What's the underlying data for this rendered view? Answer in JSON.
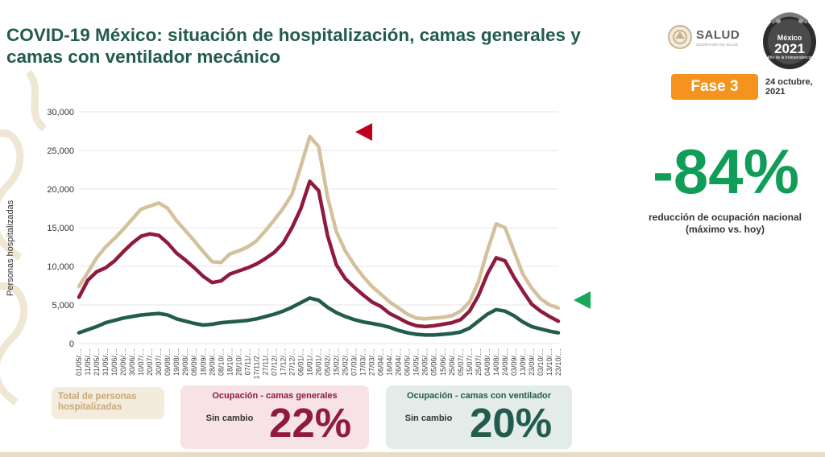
{
  "title": "COVID-19 México: situación de hospitalización, camas generales y camas con ventilador mecánico",
  "logo": {
    "name": "SALUD",
    "subtitle": "SECRETARÍA DE SALUD"
  },
  "seal": {
    "line1": "México",
    "line2": "2021",
    "line3": "Año de la Independencia"
  },
  "phase_badge": "Fase 3",
  "date": "24 octubre, 2021",
  "headline": {
    "value": "-84%",
    "label": "reducción de ocupación nacional (máximo vs. hoy)"
  },
  "legend": {
    "total": "Total de personas hospitalizadas",
    "general": {
      "title": "Ocupación - camas generales",
      "status": "Sin cambio",
      "pct": "22%"
    },
    "ventilator": {
      "title": "Ocupación - camas con ventilador",
      "status": "Sin cambio",
      "pct": "20%"
    }
  },
  "colors": {
    "title": "#235b4e",
    "total": "#d4c19c",
    "general": "#8f1a3c",
    "ventilator": "#235b4e",
    "badge": "#f5931e",
    "headline": "#0f9d58",
    "marker_red": "#c0001a",
    "marker_green": "#18a85a"
  },
  "chart_data": {
    "type": "line",
    "ylabel": "Personas hospitalizadas",
    "ylim": [
      0,
      30000
    ],
    "yticks": [
      "0",
      "5,000",
      "10,000",
      "15,000",
      "20,000",
      "25,000",
      "30,000"
    ],
    "x_tick_labels": [
      "01/05/…",
      "11/05/…",
      "21/05/…",
      "31/05/…",
      "10/06/…",
      "20/06/…",
      "30/06/…",
      "10/07/…",
      "20/07/…",
      "30/07/…",
      "09/08/…",
      "19/08/…",
      "29/08/…",
      "08/09/…",
      "18/09/…",
      "28/09/…",
      "08/10/…",
      "18/10/…",
      "28/10/…",
      "07/11/…",
      "17/11/2…",
      "27/11/…",
      "07/12/…",
      "17/12/…",
      "27/12/…",
      "06/01/…",
      "16/01/…",
      "26/01/…",
      "05/02/…",
      "15/02/…",
      "25/02/…",
      "07/03/…",
      "17/03/…",
      "27/03/…",
      "06/04/…",
      "16/04/…",
      "26/04/…",
      "06/05/…",
      "16/05/…",
      "26/05/…",
      "05/06/…",
      "15/06/…",
      "25/06/…",
      "05/07/…",
      "15/07/…",
      "25/07/…",
      "04/08/…",
      "14/08/…",
      "24/08/…",
      "03/09/…",
      "13/09/…",
      "23/09/…",
      "03/10/…",
      "13/10/…",
      "23/10/…"
    ],
    "series": [
      {
        "name": "Total de personas hospitalizadas",
        "values": [
          7400,
          9200,
          11100,
          12500,
          13600,
          14800,
          16100,
          17400,
          17800,
          18200,
          17500,
          15900,
          14600,
          13300,
          11900,
          10600,
          10500,
          11600,
          12000,
          12500,
          13300,
          14600,
          16000,
          17500,
          19300,
          23000,
          26800,
          25500,
          19000,
          14500,
          12000,
          10200,
          8700,
          7400,
          6400,
          5400,
          4600,
          3800,
          3300,
          3200,
          3300,
          3400,
          3600,
          4200,
          5400,
          8000,
          12000,
          15500,
          15000,
          12000,
          9000,
          7200,
          5800,
          5000,
          4600
        ]
      },
      {
        "name": "Ocupación - camas generales",
        "values": [
          6000,
          8200,
          9300,
          9800,
          10700,
          11900,
          13000,
          13900,
          14200,
          14000,
          13000,
          11700,
          10800,
          9800,
          8700,
          7900,
          8100,
          9000,
          9400,
          9800,
          10300,
          11000,
          11800,
          13000,
          15000,
          17500,
          21000,
          19800,
          14000,
          10200,
          8400,
          7300,
          6300,
          5400,
          4800,
          3900,
          3300,
          2700,
          2300,
          2200,
          2300,
          2500,
          2700,
          3100,
          4200,
          6200,
          9000,
          11100,
          10700,
          8600,
          6800,
          5100,
          4200,
          3500,
          2900
        ]
      },
      {
        "name": "Ocupación - camas con ventilador",
        "values": [
          1400,
          1800,
          2200,
          2700,
          3000,
          3300,
          3500,
          3700,
          3800,
          3900,
          3700,
          3200,
          2900,
          2600,
          2400,
          2500,
          2700,
          2800,
          2900,
          3000,
          3200,
          3500,
          3800,
          4200,
          4700,
          5300,
          5900,
          5600,
          4700,
          4000,
          3500,
          3100,
          2800,
          2600,
          2400,
          2100,
          1700,
          1400,
          1200,
          1100,
          1100,
          1200,
          1300,
          1500,
          2000,
          2900,
          3800,
          4400,
          4200,
          3600,
          2800,
          2200,
          1900,
          1600,
          1400
        ]
      }
    ]
  }
}
